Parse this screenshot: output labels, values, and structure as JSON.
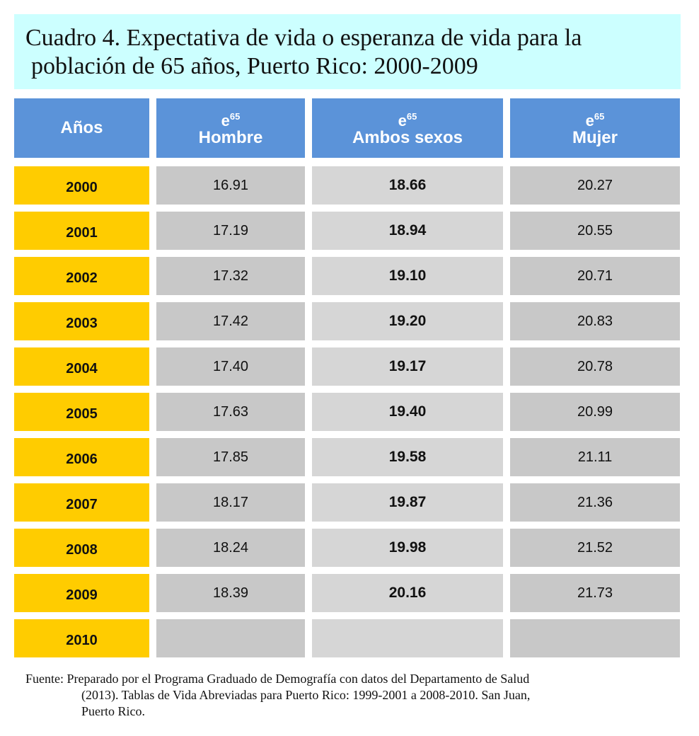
{
  "title": {
    "line1": "Cuadro 4. Expectativa de vida o esperanza de vida para la",
    "line2": "población de 65 años, Puerto Rico: 2000-2009"
  },
  "table": {
    "headers": {
      "years": "Años",
      "symbol": "e",
      "superscript": "65",
      "male": "Hombre",
      "both": "Ambos sexos",
      "female": "Mujer"
    },
    "rows": [
      {
        "year": "2000",
        "male": "16.91",
        "both": "18.66",
        "female": "20.27"
      },
      {
        "year": "2001",
        "male": "17.19",
        "both": "18.94",
        "female": "20.55"
      },
      {
        "year": "2002",
        "male": "17.32",
        "both": "19.10",
        "female": "20.71"
      },
      {
        "year": "2003",
        "male": "17.42",
        "both": "19.20",
        "female": "20.83"
      },
      {
        "year": "2004",
        "male": "17.40",
        "both": "19.17",
        "female": "20.78"
      },
      {
        "year": "2005",
        "male": "17.63",
        "both": "19.40",
        "female": "20.99"
      },
      {
        "year": "2006",
        "male": "17.85",
        "both": "19.58",
        "female": "21.11"
      },
      {
        "year": "2007",
        "male": "18.17",
        "both": "19.87",
        "female": "21.36"
      },
      {
        "year": "2008",
        "male": "18.24",
        "both": "19.98",
        "female": "21.52"
      },
      {
        "year": "2009",
        "male": "18.39",
        "both": "20.16",
        "female": "21.73"
      },
      {
        "year": "2010",
        "male": "",
        "both": "",
        "female": ""
      }
    ]
  },
  "source": {
    "line1": "Fuente: Preparado por el Programa Graduado de Demografía con datos del Departamento de Salud",
    "line2": "(2013). Tablas de Vida Abreviadas para Puerto Rico: 1999-2001 a  2008-2010. San Juan,",
    "line3": "Puerto Rico."
  },
  "colors": {
    "title_bg": "#ccffff",
    "header_bg": "#5b93d9",
    "year_bg": "#ffcc00",
    "cell_bg": "#c8c8c8"
  }
}
